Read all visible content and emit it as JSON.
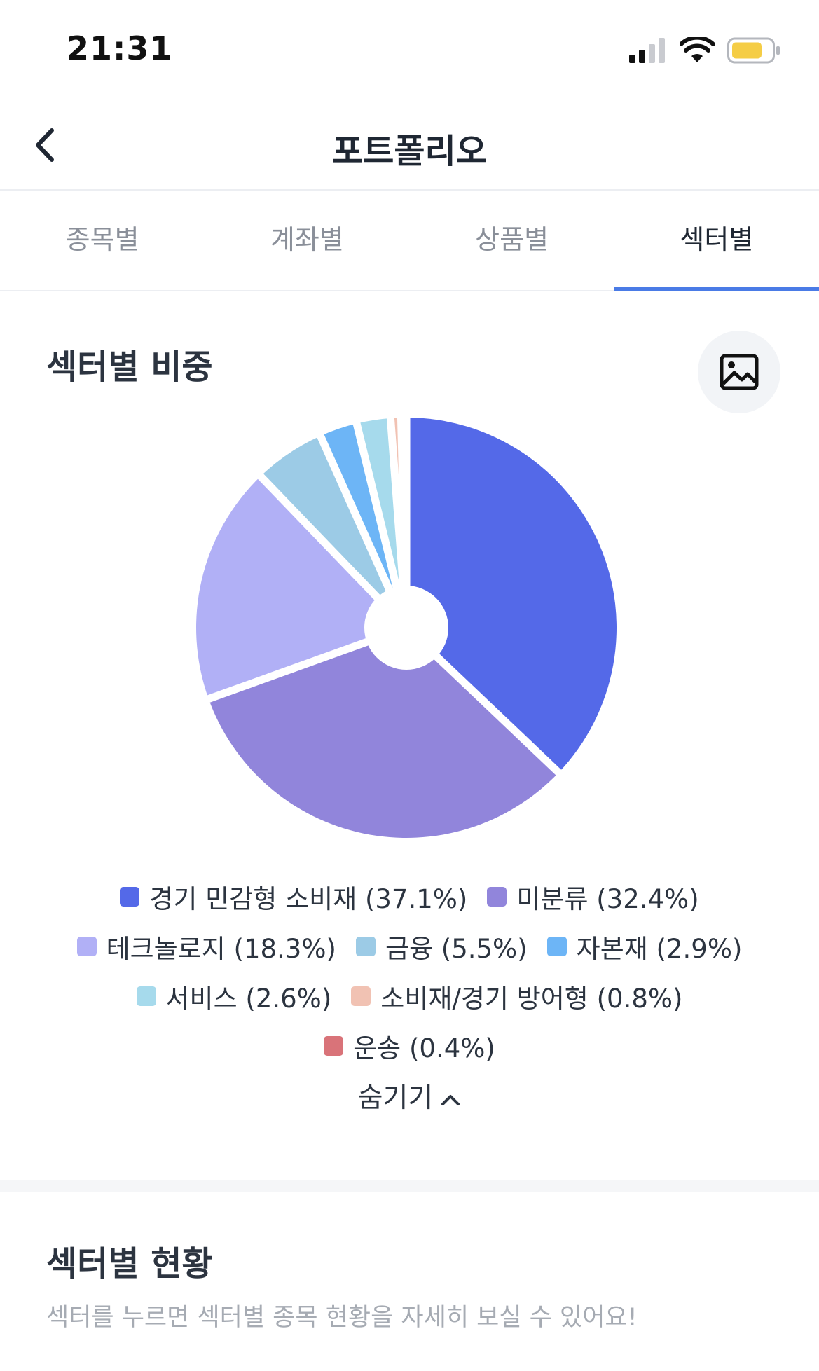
{
  "status_bar": {
    "time": "21:31"
  },
  "header": {
    "title": "포트폴리오"
  },
  "tabs": [
    {
      "label": "종목별"
    },
    {
      "label": "계좌별"
    },
    {
      "label": "상품별"
    },
    {
      "label": "섹터별"
    }
  ],
  "weights_section": {
    "title": "섹터별 비중",
    "image_button_icon": "image-icon",
    "hide_label": "숨기기"
  },
  "chart_data": {
    "type": "pie",
    "categories": [
      "경기 민감형 소비재",
      "미분류",
      "테크놀로지",
      "금융",
      "자본재",
      "서비스",
      "소비재/경기 방어형",
      "운송"
    ],
    "values": [
      37.1,
      32.4,
      18.3,
      5.5,
      2.9,
      2.6,
      0.8,
      0.4
    ],
    "colors": [
      "#5469e8",
      "#9185db",
      "#b1b0f6",
      "#9ccbe6",
      "#6db5f6",
      "#a6daec",
      "#f1c2b3",
      "#d97379"
    ],
    "legend": [
      {
        "label": "경기 민감형 소비재 (37.1%)"
      },
      {
        "label": "미분류 (32.4%)"
      },
      {
        "label": "테크놀로지 (18.3%)"
      },
      {
        "label": "금융 (5.5%)"
      },
      {
        "label": "자본재 (2.9%)"
      },
      {
        "label": "서비스 (2.6%)"
      },
      {
        "label": "소비재/경기 방어형 (0.8%)"
      },
      {
        "label": "운송 (0.4%)"
      }
    ]
  },
  "status_section": {
    "title": "섹터별 현황",
    "subtitle": "섹터를 누르면 섹터별 종목 현황을 자세히 보실 수 있어요!"
  }
}
